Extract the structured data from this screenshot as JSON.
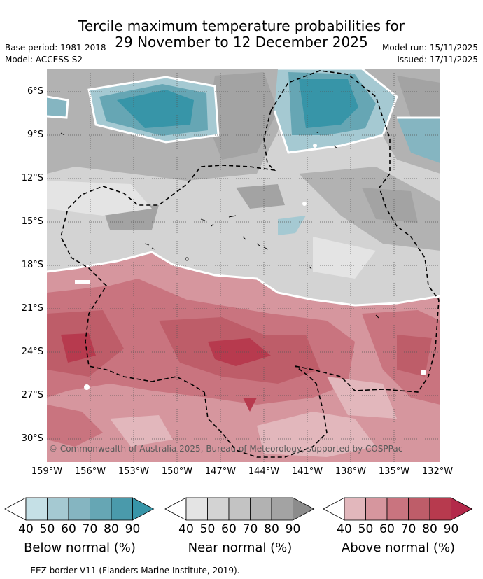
{
  "header": {
    "title_line1": "Tercile maximum temperature probabilities for",
    "title_line2": "29 November to 12 December 2025",
    "base_period": "Base period: 1981-2018",
    "model": "Model: ACCESS-S2",
    "model_run": "Model run: 15/11/2025",
    "issued": "Issued: 17/11/2025"
  },
  "map": {
    "lat_labels": [
      "6°S",
      "9°S",
      "12°S",
      "15°S",
      "18°S",
      "21°S",
      "24°S",
      "27°S",
      "30°S"
    ],
    "lon_labels": [
      "159°W",
      "156°W",
      "153°W",
      "150°W",
      "147°W",
      "144°W",
      "141°W",
      "138°W",
      "135°W",
      "132°W"
    ],
    "copyright": "© Commonwealth of Australia 2025, Bureau of Meteorology, supported by COSPPac"
  },
  "colorbars": {
    "ticks": [
      "40",
      "50",
      "60",
      "70",
      "80",
      "90"
    ],
    "below": {
      "label": "Below normal (%)",
      "colors": [
        "#ffffff",
        "#c5e0e6",
        "#a5c9d2",
        "#85b5c1",
        "#66a6b4",
        "#4a9aab",
        "#3795a8"
      ]
    },
    "near": {
      "label": "Near normal (%)",
      "colors": [
        "#ffffff",
        "#e4e4e4",
        "#d3d3d3",
        "#c3c3c3",
        "#b2b2b2",
        "#a3a3a3",
        "#8c8c8c"
      ]
    },
    "above": {
      "label": "Above normal (%)",
      "colors": [
        "#ffffff",
        "#e2b7bc",
        "#d6969e",
        "#c9747f",
        "#be5d69",
        "#b73a4e",
        "#b3294a"
      ]
    }
  },
  "footnote": "-- -- -- EEZ border V11 (Flanders Marine Institute, 2019)."
}
